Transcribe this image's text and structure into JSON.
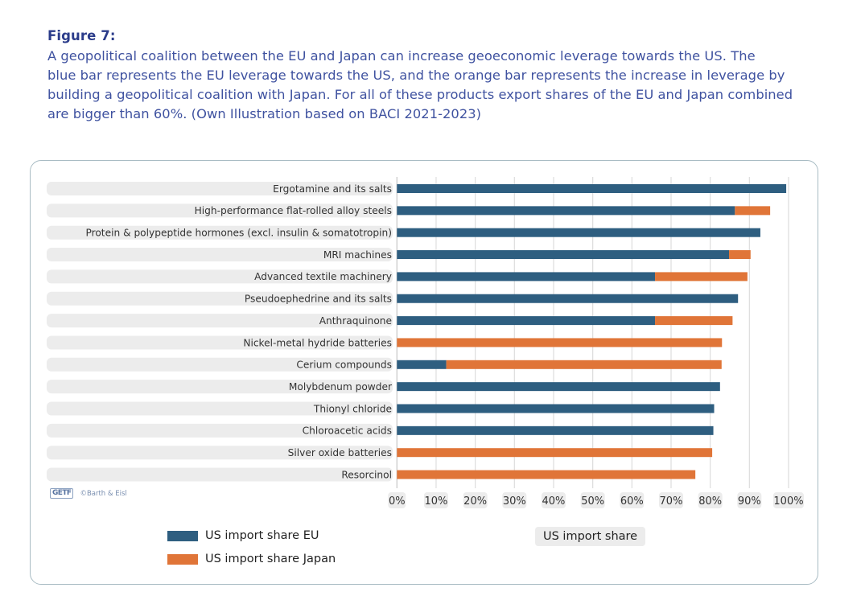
{
  "figure": {
    "title": "Figure 7:",
    "caption_lines": [
      "A geopolitical coalition between the EU and Japan can increase geoeconomic leverage towards the US. The",
      "blue bar represents the EU leverage towards the US, and the orange bar represents the increase in leverage by",
      "building a geopolitical coalition with Japan. For all of these products export shares of the EU and Japan combined",
      "are bigger than 60%. (Own Illustration based on BACI 2021-2023)"
    ]
  },
  "credit": {
    "logo_text": "GETF",
    "text": "©Barth & Eisl"
  },
  "colors": {
    "eu": "#2e5e80",
    "japan": "#e07538",
    "label_bg": "#ececec",
    "grid": "#dddddd"
  },
  "chart_data": {
    "type": "bar",
    "orientation": "horizontal",
    "stacked": true,
    "title": "",
    "xlabel": "US import share",
    "ylabel": "",
    "xlim": [
      0,
      100
    ],
    "x_ticks": [
      "0%",
      "10%",
      "20%",
      "30%",
      "40%",
      "50%",
      "60%",
      "70%",
      "80%",
      "90%",
      "100%"
    ],
    "grid": true,
    "legend_position": "bottom-left",
    "categories": [
      "Ergotamine and its salts",
      "High-performance flat-rolled alloy steels",
      "Protein & polypeptide hormones (excl. insulin & somatotropin)",
      "MRI machines",
      "Advanced textile machinery",
      "Pseudoephedrine and its salts",
      "Anthraquinone",
      "Nickel-metal hydride batteries",
      "Cerium compounds",
      "Molybdenum powder",
      "Thionyl chloride",
      "Chloroacetic acids",
      "Silver oxide batteries",
      "Resorcinol"
    ],
    "series": [
      {
        "name": "US import share EU",
        "values": [
          99.4,
          86.3,
          92.8,
          84.8,
          65.9,
          87.1,
          65.9,
          0,
          12.6,
          82.5,
          81.0,
          80.8,
          0,
          0
        ]
      },
      {
        "name": "US import share Japan",
        "values": [
          0,
          9.0,
          0,
          5.5,
          23.6,
          0,
          19.8,
          83.0,
          70.3,
          0,
          0,
          0,
          80.5,
          76.2
        ]
      }
    ]
  }
}
